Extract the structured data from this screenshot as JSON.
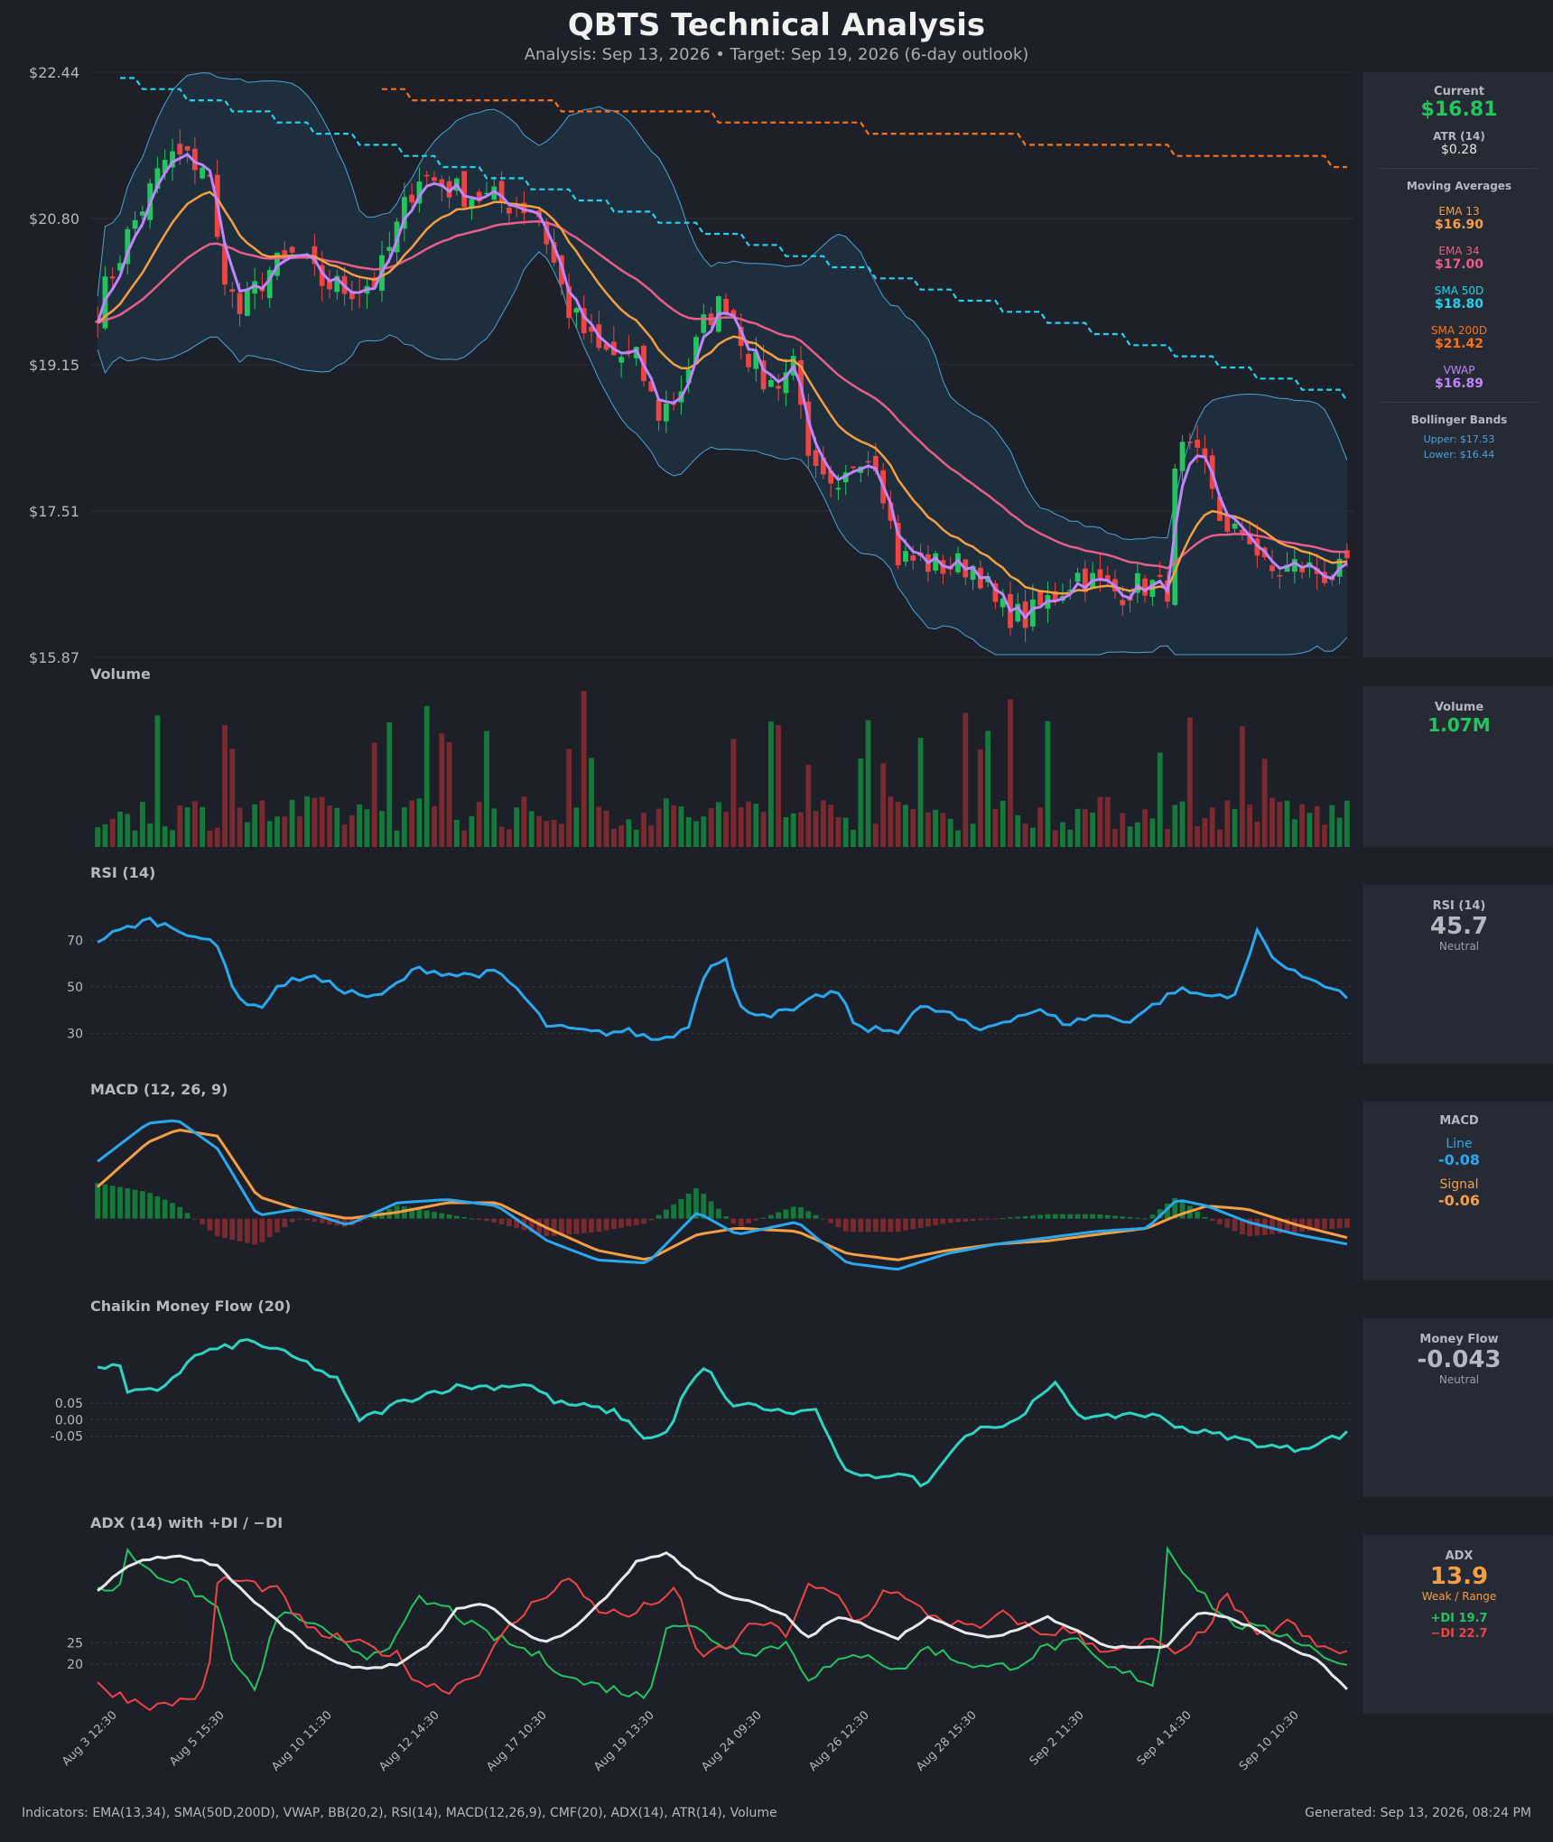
{
  "header": {
    "title": "QBTS Technical Analysis",
    "subtitle": "Analysis: Sep 13, 2026  •  Target: Sep 19, 2026  (6-day outlook)"
  },
  "colors": {
    "up": "#22c55e",
    "down": "#ef4444",
    "ema13": "#f59e42",
    "ema34": "#e85d8a",
    "sma50": "#22d3ee",
    "sma200": "#f97316",
    "vwap": "#c084fc",
    "bb": "#4aa3d8",
    "rsi": "#29a8f0",
    "macd": "#29a8f0",
    "signal": "#f59e42",
    "cmf": "#2dd4bf",
    "adx": "#e8e8e8",
    "plus_di": "#22c55e",
    "minus_di": "#ef4444"
  },
  "panels": {
    "volume": "Volume",
    "rsi": "RSI (14)",
    "macd": "MACD (12, 26, 9)",
    "cmf": "Chaikin Money Flow (20)",
    "adx": "ADX (14) with +DI / −DI"
  },
  "sidebar": {
    "current_label": "Current",
    "current_value": "$16.81",
    "atr_label": "ATR (14)",
    "atr_value": "$0.28",
    "ma_header": "Moving Averages",
    "ema13_label": "EMA 13",
    "ema13_value": "$16.90",
    "ema34_label": "EMA 34",
    "ema34_value": "$17.00",
    "sma50_label": "SMA 50D",
    "sma50_value": "$18.80",
    "sma200_label": "SMA 200D",
    "sma200_value": "$21.42",
    "vwap_label": "VWAP",
    "vwap_value": "$16.89",
    "bb_header": "Bollinger Bands",
    "bb_upper": "Upper: $17.53",
    "bb_lower": "Lower: $16.44",
    "volume_label": "Volume",
    "volume_value": "1.07M",
    "rsi_label": "RSI (14)",
    "rsi_value": "45.7",
    "rsi_state": "Neutral",
    "macd_label": "MACD",
    "macd_line_label": "Line",
    "macd_line_value": "-0.08",
    "macd_signal_label": "Signal",
    "macd_signal_value": "-0.06",
    "mf_label": "Money Flow",
    "mf_value": "-0.043",
    "mf_state": "Neutral",
    "adx_label": "ADX",
    "adx_value": "13.9",
    "adx_state": "Weak / Range",
    "plus_di": "+DI 19.7",
    "minus_di": "−DI 22.7"
  },
  "footer": {
    "indicators": "Indicators: EMA(13,34), SMA(50D,200D), VWAP, BB(20,2), RSI(14), MACD(12,26,9), CMF(20), ADX(14), ATR(14), Volume",
    "generated": "Generated: Sep 13, 2026, 08:24 PM"
  },
  "chart_data": {
    "type": "line",
    "price_axis": {
      "ylim": [
        15.87,
        22.44
      ],
      "ticks": [
        "$22.44",
        "$20.80",
        "$19.15",
        "$17.51",
        "$15.87"
      ]
    },
    "x_ticks": [
      "Aug 3 12:30",
      "Aug 5 15:30",
      "Aug 10 11:30",
      "Aug 12 14:30",
      "Aug 17 10:30",
      "Aug 19 13:30",
      "Aug 24 09:30",
      "Aug 26 12:30",
      "Aug 28 15:30",
      "Sep 2 11:30",
      "Sep 4 14:30",
      "Sep 10 10:30"
    ],
    "bars": 168,
    "close_anchors": [
      [
        0,
        19.8
      ],
      [
        6,
        20.6
      ],
      [
        14,
        21.5
      ],
      [
        22,
        21.4
      ],
      [
        24,
        20.5
      ],
      [
        28,
        19.7
      ],
      [
        34,
        20.2
      ],
      [
        40,
        20.4
      ],
      [
        44,
        20.1
      ],
      [
        50,
        20.0
      ],
      [
        56,
        20.1
      ],
      [
        64,
        21.3
      ],
      [
        72,
        21.1
      ],
      [
        80,
        21.0
      ],
      [
        88,
        20.9
      ],
      [
        94,
        19.8
      ],
      [
        100,
        19.3
      ],
      [
        108,
        19.2
      ],
      [
        112,
        18.6
      ],
      [
        116,
        18.8
      ],
      [
        122,
        19.7
      ],
      [
        126,
        19.9
      ],
      [
        130,
        19.3
      ],
      [
        134,
        18.9
      ],
      [
        138,
        19.1
      ],
      [
        140,
        19.3
      ],
      [
        142,
        18.0
      ],
      [
        148,
        17.6
      ],
      [
        152,
        18.2
      ],
      [
        156,
        18.1
      ],
      [
        160,
        17.0
      ],
      [
        168,
        16.9
      ],
      [
        176,
        16.9
      ],
      [
        180,
        16.4
      ],
      [
        186,
        16.3
      ],
      [
        190,
        16.5
      ],
      [
        196,
        16.8
      ],
      [
        204,
        16.6
      ],
      [
        210,
        16.7
      ],
      [
        214,
        16.6
      ],
      [
        216,
        18.2
      ],
      [
        222,
        18.0
      ],
      [
        226,
        17.2
      ],
      [
        230,
        17.3
      ],
      [
        234,
        16.8
      ],
      [
        240,
        16.9
      ],
      [
        246,
        16.8
      ],
      [
        250,
        16.81
      ]
    ],
    "sma50": {
      "start": 22.44,
      "end": 18.8
    },
    "sma200": {
      "start": 22.44,
      "end": 21.42
    },
    "rsi": {
      "ylim": [
        20,
        90
      ],
      "ticks": [
        "70",
        "50",
        "30"
      ],
      "anchors": [
        [
          0,
          70
        ],
        [
          10,
          79
        ],
        [
          20,
          72
        ],
        [
          24,
          67
        ],
        [
          28,
          46
        ],
        [
          32,
          40
        ],
        [
          36,
          50
        ],
        [
          42,
          55
        ],
        [
          50,
          48
        ],
        [
          56,
          45
        ],
        [
          64,
          58
        ],
        [
          72,
          55
        ],
        [
          80,
          56
        ],
        [
          84,
          49
        ],
        [
          90,
          33
        ],
        [
          100,
          30
        ],
        [
          106,
          31
        ],
        [
          112,
          27
        ],
        [
          118,
          32
        ],
        [
          122,
          60
        ],
        [
          126,
          62
        ],
        [
          128,
          41
        ],
        [
          134,
          38
        ],
        [
          140,
          40
        ],
        [
          144,
          46
        ],
        [
          148,
          48
        ],
        [
          152,
          32
        ],
        [
          160,
          31
        ],
        [
          164,
          41
        ],
        [
          170,
          39
        ],
        [
          176,
          31
        ],
        [
          182,
          36
        ],
        [
          188,
          40
        ],
        [
          194,
          34
        ],
        [
          200,
          38
        ],
        [
          206,
          35
        ],
        [
          212,
          43
        ],
        [
          216,
          49
        ],
        [
          222,
          46
        ],
        [
          228,
          47
        ],
        [
          232,
          74
        ],
        [
          236,
          61
        ],
        [
          240,
          55
        ],
        [
          244,
          53
        ],
        [
          250,
          45.7
        ]
      ]
    },
    "macd": {
      "line_anchors": [
        [
          0,
          0.18
        ],
        [
          10,
          0.3
        ],
        [
          16,
          0.31
        ],
        [
          24,
          0.22
        ],
        [
          32,
          0.01
        ],
        [
          40,
          0.03
        ],
        [
          50,
          -0.02
        ],
        [
          60,
          0.05
        ],
        [
          70,
          0.06
        ],
        [
          80,
          0.04
        ],
        [
          90,
          -0.07
        ],
        [
          100,
          -0.13
        ],
        [
          110,
          -0.14
        ],
        [
          120,
          0.02
        ],
        [
          128,
          -0.05
        ],
        [
          140,
          -0.01
        ],
        [
          150,
          -0.14
        ],
        [
          160,
          -0.16
        ],
        [
          170,
          -0.11
        ],
        [
          180,
          -0.08
        ],
        [
          190,
          -0.06
        ],
        [
          200,
          -0.04
        ],
        [
          210,
          -0.03
        ],
        [
          216,
          0.06
        ],
        [
          222,
          0.04
        ],
        [
          230,
          -0.01
        ],
        [
          240,
          -0.05
        ],
        [
          250,
          -0.08
        ]
      ],
      "signal_anchors": [
        [
          0,
          0.1
        ],
        [
          10,
          0.24
        ],
        [
          16,
          0.28
        ],
        [
          24,
          0.26
        ],
        [
          32,
          0.07
        ],
        [
          40,
          0.03
        ],
        [
          50,
          0.0
        ],
        [
          60,
          0.02
        ],
        [
          70,
          0.05
        ],
        [
          80,
          0.05
        ],
        [
          90,
          -0.03
        ],
        [
          100,
          -0.1
        ],
        [
          110,
          -0.13
        ],
        [
          120,
          -0.05
        ],
        [
          128,
          -0.03
        ],
        [
          140,
          -0.04
        ],
        [
          150,
          -0.11
        ],
        [
          160,
          -0.13
        ],
        [
          170,
          -0.1
        ],
        [
          180,
          -0.08
        ],
        [
          190,
          -0.07
        ],
        [
          200,
          -0.05
        ],
        [
          210,
          -0.03
        ],
        [
          216,
          0.01
        ],
        [
          222,
          0.04
        ],
        [
          230,
          0.03
        ],
        [
          240,
          -0.02
        ],
        [
          250,
          -0.06
        ]
      ]
    },
    "cmf": {
      "ticks": [
        "0.05",
        "0.00",
        "-0.05"
      ],
      "anchors": [
        [
          0,
          0.15
        ],
        [
          4,
          0.18
        ],
        [
          6,
          0.08
        ],
        [
          12,
          0.09
        ],
        [
          16,
          0.14
        ],
        [
          20,
          0.2
        ],
        [
          26,
          0.22
        ],
        [
          30,
          0.24
        ],
        [
          36,
          0.21
        ],
        [
          42,
          0.17
        ],
        [
          48,
          0.12
        ],
        [
          52,
          0.0
        ],
        [
          56,
          0.02
        ],
        [
          60,
          0.05
        ],
        [
          66,
          0.08
        ],
        [
          72,
          0.1
        ],
        [
          80,
          0.1
        ],
        [
          86,
          0.11
        ],
        [
          92,
          0.05
        ],
        [
          98,
          0.04
        ],
        [
          104,
          0.02
        ],
        [
          110,
          -0.06
        ],
        [
          114,
          -0.04
        ],
        [
          118,
          0.1
        ],
        [
          122,
          0.16
        ],
        [
          126,
          0.05
        ],
        [
          132,
          0.04
        ],
        [
          138,
          0.02
        ],
        [
          144,
          0.03
        ],
        [
          148,
          -0.12
        ],
        [
          152,
          -0.18
        ],
        [
          160,
          -0.16
        ],
        [
          166,
          -0.2
        ],
        [
          170,
          -0.1
        ],
        [
          176,
          -0.02
        ],
        [
          182,
          -0.02
        ],
        [
          188,
          0.06
        ],
        [
          192,
          0.11
        ],
        [
          196,
          0.02
        ],
        [
          200,
          0.0
        ],
        [
          206,
          0.02
        ],
        [
          212,
          0.01
        ],
        [
          218,
          -0.03
        ],
        [
          226,
          -0.05
        ],
        [
          234,
          -0.08
        ],
        [
          240,
          -0.09
        ],
        [
          246,
          -0.06
        ],
        [
          250,
          -0.043
        ]
      ]
    },
    "adx": {
      "ticks": [
        "25",
        "20"
      ],
      "anchors": [
        [
          0,
          37
        ],
        [
          6,
          43
        ],
        [
          12,
          45
        ],
        [
          18,
          45
        ],
        [
          24,
          43
        ],
        [
          30,
          36
        ],
        [
          36,
          30
        ],
        [
          42,
          24
        ],
        [
          48,
          20
        ],
        [
          54,
          19
        ],
        [
          60,
          20
        ],
        [
          66,
          24
        ],
        [
          72,
          33
        ],
        [
          78,
          34
        ],
        [
          84,
          28
        ],
        [
          90,
          25
        ],
        [
          96,
          29
        ],
        [
          102,
          36
        ],
        [
          108,
          44
        ],
        [
          114,
          46
        ],
        [
          120,
          40
        ],
        [
          126,
          36
        ],
        [
          132,
          34
        ],
        [
          138,
          31
        ],
        [
          142,
          26
        ],
        [
          148,
          31
        ],
        [
          154,
          29
        ],
        [
          160,
          26
        ],
        [
          166,
          31
        ],
        [
          172,
          28
        ],
        [
          178,
          26
        ],
        [
          184,
          28
        ],
        [
          190,
          31
        ],
        [
          196,
          28
        ],
        [
          202,
          24
        ],
        [
          208,
          24
        ],
        [
          214,
          24
        ],
        [
          220,
          32
        ],
        [
          226,
          31
        ],
        [
          232,
          28
        ],
        [
          238,
          24
        ],
        [
          244,
          21
        ],
        [
          250,
          13.9
        ]
      ]
    },
    "plus_di": {
      "anchors": [
        [
          0,
          38
        ],
        [
          4,
          37
        ],
        [
          6,
          46
        ],
        [
          12,
          41
        ],
        [
          18,
          38
        ],
        [
          24,
          33
        ],
        [
          28,
          18
        ],
        [
          32,
          14
        ],
        [
          36,
          32
        ],
        [
          42,
          30
        ],
        [
          48,
          25
        ],
        [
          54,
          22
        ],
        [
          60,
          26
        ],
        [
          64,
          35
        ],
        [
          70,
          33
        ],
        [
          76,
          28
        ],
        [
          82,
          25
        ],
        [
          88,
          22
        ],
        [
          96,
          16
        ],
        [
          104,
          14
        ],
        [
          110,
          12
        ],
        [
          114,
          30
        ],
        [
          120,
          28
        ],
        [
          126,
          24
        ],
        [
          132,
          23
        ],
        [
          138,
          25
        ],
        [
          142,
          17
        ],
        [
          148,
          20
        ],
        [
          154,
          23
        ],
        [
          160,
          18
        ],
        [
          166,
          24
        ],
        [
          172,
          21
        ],
        [
          178,
          19
        ],
        [
          184,
          20
        ],
        [
          190,
          24
        ],
        [
          196,
          25
        ],
        [
          202,
          19
        ],
        [
          208,
          17
        ],
        [
          212,
          15
        ],
        [
          214,
          47
        ],
        [
          220,
          38
        ],
        [
          226,
          30
        ],
        [
          232,
          28
        ],
        [
          238,
          27
        ],
        [
          244,
          23
        ],
        [
          250,
          19.7
        ]
      ]
    },
    "minus_di": {
      "anchors": [
        [
          0,
          15
        ],
        [
          6,
          12
        ],
        [
          12,
          10
        ],
        [
          18,
          12
        ],
        [
          22,
          14
        ],
        [
          24,
          40
        ],
        [
          30,
          39
        ],
        [
          36,
          37
        ],
        [
          42,
          28
        ],
        [
          48,
          26
        ],
        [
          54,
          24
        ],
        [
          60,
          22
        ],
        [
          64,
          16
        ],
        [
          70,
          14
        ],
        [
          76,
          18
        ],
        [
          82,
          28
        ],
        [
          88,
          35
        ],
        [
          94,
          40
        ],
        [
          100,
          33
        ],
        [
          106,
          31
        ],
        [
          112,
          35
        ],
        [
          116,
          37
        ],
        [
          120,
          22
        ],
        [
          126,
          24
        ],
        [
          132,
          30
        ],
        [
          138,
          27
        ],
        [
          142,
          38
        ],
        [
          148,
          36
        ],
        [
          152,
          29
        ],
        [
          158,
          38
        ],
        [
          164,
          33
        ],
        [
          170,
          30
        ],
        [
          176,
          28
        ],
        [
          182,
          32
        ],
        [
          188,
          27
        ],
        [
          194,
          28
        ],
        [
          200,
          24
        ],
        [
          206,
          23
        ],
        [
          212,
          26
        ],
        [
          216,
          21
        ],
        [
          222,
          29
        ],
        [
          226,
          36
        ],
        [
          232,
          26
        ],
        [
          238,
          30
        ],
        [
          244,
          24
        ],
        [
          250,
          22.7
        ]
      ]
    }
  }
}
